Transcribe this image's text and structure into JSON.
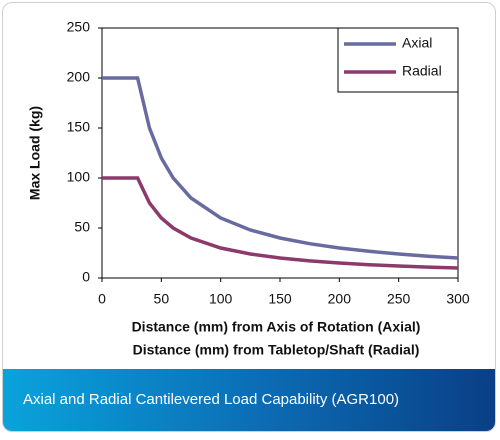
{
  "chart_data": {
    "type": "line",
    "ylabel": "Max Load (kg)",
    "xlabel": [
      "Distance (mm) from Axis of Rotation (Axial)",
      "Distance (mm) from Tabletop/Shaft (Radial)"
    ],
    "x": [
      0,
      30,
      40,
      50,
      60,
      75,
      100,
      125,
      150,
      175,
      200,
      225,
      250,
      275,
      300
    ],
    "series": [
      {
        "name": "Axial",
        "color": "#676b9f",
        "values": [
          200,
          200,
          150,
          120,
          100,
          80,
          60,
          48,
          40,
          34.3,
          30,
          26.7,
          24,
          21.8,
          20
        ]
      },
      {
        "name": "Radial",
        "color": "#8c3a6c",
        "values": [
          100,
          100,
          75,
          60,
          50,
          40,
          30,
          24,
          20,
          17.1,
          15,
          13.3,
          12,
          10.9,
          10
        ]
      }
    ],
    "xlim": [
      0,
      300
    ],
    "ylim": [
      0,
      250
    ],
    "xticks": [
      0,
      50,
      100,
      150,
      200,
      250,
      300
    ],
    "yticks": [
      0,
      50,
      100,
      150,
      200,
      250
    ],
    "legend": "upper right"
  },
  "footer": {
    "title": "Axial and Radial Cantilevered Load Capability (AGR100)"
  }
}
